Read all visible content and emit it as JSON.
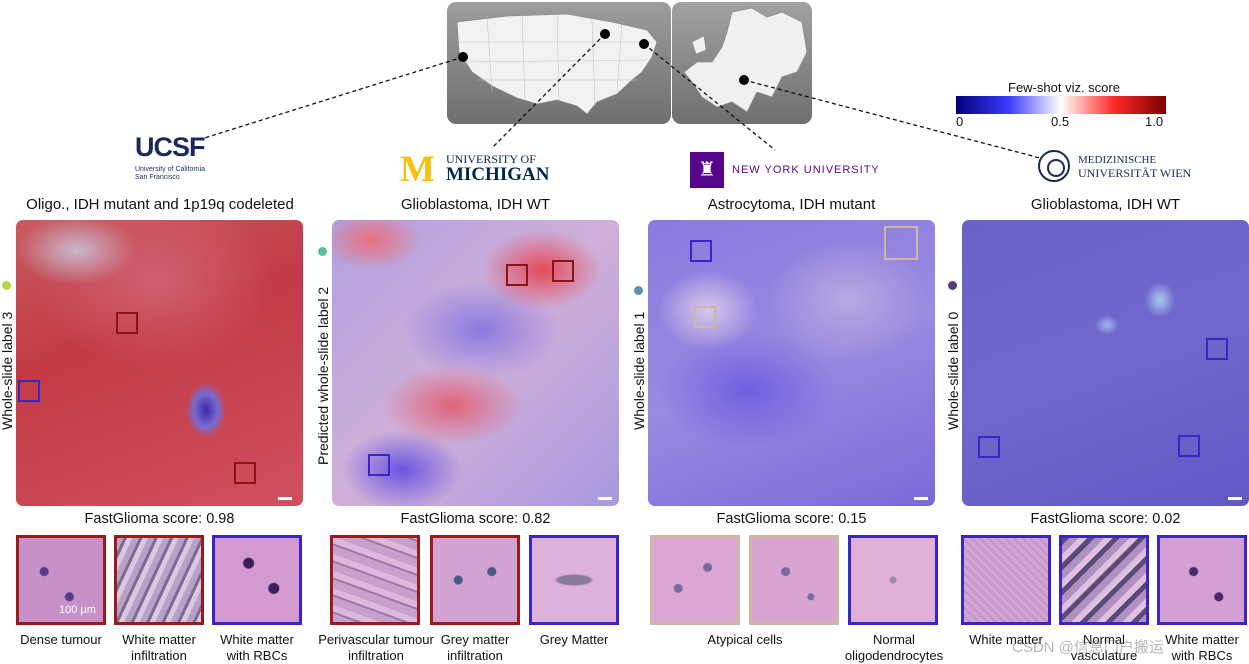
{
  "map": {
    "title": "Few-shot viz. score",
    "ticks": [
      "0",
      "0.5",
      "1.0"
    ],
    "colorbar_colors": [
      "#00007a",
      "#3a3aff",
      "#ffffff",
      "#ff2a2a",
      "#7a0000"
    ]
  },
  "logos": {
    "ucsf": {
      "mark": "UCSF",
      "line1": "University of California",
      "line2": "San Francisco"
    },
    "michigan": {
      "mark": "M",
      "line1": "UNIVERSITY OF",
      "line2": "MICHIGAN"
    },
    "nyu": {
      "name": "NEW YORK UNIVERSITY"
    },
    "wien": {
      "line1": "MEDIZINISCHE",
      "line2": "UNIVERSITÄT WIEN"
    }
  },
  "panels": [
    {
      "title": "Oligo., IDH mutant and 1p19q codeleted",
      "side_label": "Whole-slide label 3",
      "dot_color": "#b8d64a",
      "score_label": "FastGlioma score: 0.98",
      "thumbs": [
        {
          "label": "Dense tumour",
          "border": "#9a1b1b",
          "scalebar_text": "100 μm"
        },
        {
          "label": "White matter infiltration",
          "border": "#9a1b1b"
        },
        {
          "label": "White matter with RBCs",
          "border": "#3a25c8"
        }
      ]
    },
    {
      "title": "Glioblastoma, IDH WT",
      "side_label": "Predicted whole-slide label 2",
      "dot_color": "#5bbf9a",
      "score_label": "FastGlioma score: 0.82",
      "thumbs": [
        {
          "label": "Perivascular tumour infiltration",
          "border": "#9a1b1b"
        },
        {
          "label": "Grey matter infiltration",
          "border": "#9a1b1b"
        },
        {
          "label": "Grey Matter",
          "border": "#3a25c8"
        }
      ]
    },
    {
      "title": "Astrocytoma, IDH mutant",
      "side_label": "Whole-slide label 1",
      "dot_color": "#5d8fb0",
      "score_label": "FastGlioma score: 0.15",
      "thumbs": [
        {
          "label": "Atypical cells",
          "border": "#cdb7a6"
        },
        {
          "label": "",
          "border": "#cdb7a6"
        },
        {
          "label": "Normal oligodendrocytes",
          "border": "#3a25c8"
        }
      ]
    },
    {
      "title": "Glioblastoma, IDH WT",
      "side_label": "Whole-slide label 0",
      "dot_color": "#5a3d7a",
      "score_label": "FastGlioma score: 0.02",
      "thumbs": [
        {
          "label": "White matter",
          "border": "#3a25c8"
        },
        {
          "label": "Normal vasculature",
          "border": "#3a25c8"
        },
        {
          "label": "White matter with RBCs",
          "border": "#3a25c8"
        }
      ]
    }
  ],
  "watermark": "CSDN @信息门户搬运"
}
